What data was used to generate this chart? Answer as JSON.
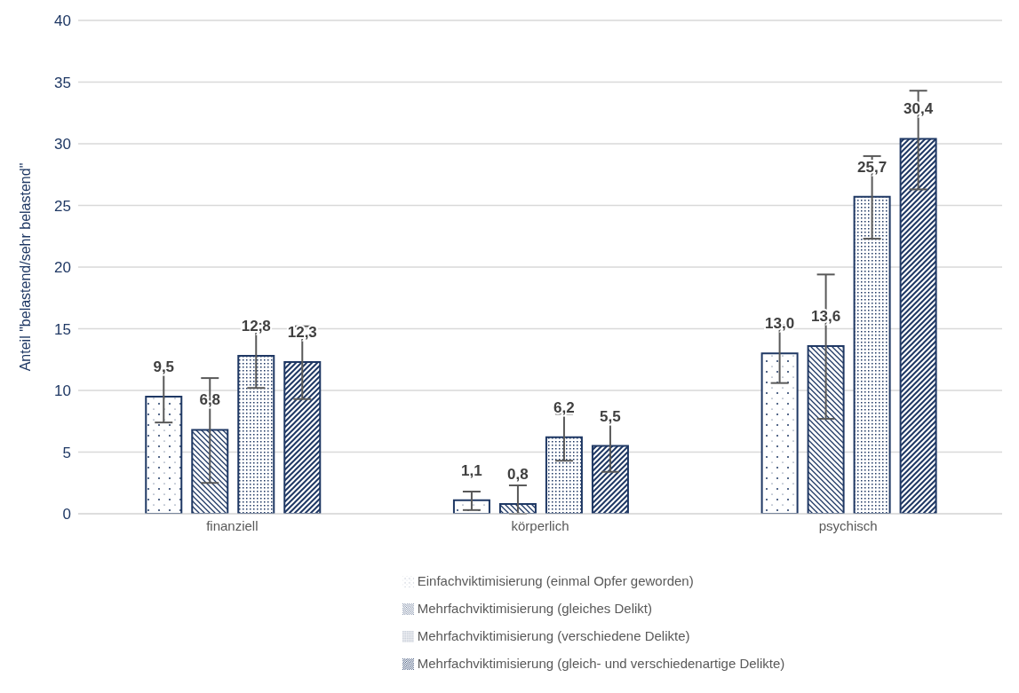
{
  "chart_data": {
    "type": "bar",
    "ylabel": "Anteil \"belastend/sehr belastend\"",
    "categories": [
      "finanziell",
      "körperlich",
      "psychisch"
    ],
    "series": [
      {
        "name": "Einfachviktimisierung (einmal Opfer geworden)",
        "color": "#1f3864",
        "values": [
          9.5,
          1.1,
          13.0
        ],
        "value_labels": [
          "9,5",
          "1,1",
          "13,0"
        ],
        "errors": [
          [
            7.4,
            11.6
          ],
          [
            0.3,
            1.8
          ],
          [
            10.6,
            15.3
          ]
        ]
      },
      {
        "name": "Mehrfachviktimisierung (gleiches Delikt)",
        "color": "#1f3864",
        "values": [
          6.8,
          0.8,
          13.6
        ],
        "value_labels": [
          "6,8",
          "0,8",
          "13,6"
        ],
        "errors": [
          [
            2.5,
            11.0
          ],
          [
            0,
            2.3
          ],
          [
            7.7,
            19.4
          ]
        ]
      },
      {
        "name": "Mehrfachviktimisierung (verschiedene Delikte)",
        "color": "#1f3864",
        "values": [
          12.8,
          6.2,
          25.7
        ],
        "value_labels": [
          "12,8",
          "6,2",
          "25,7"
        ],
        "errors": [
          [
            10.2,
            15.4
          ],
          [
            4.3,
            8.1
          ],
          [
            22.3,
            29.0
          ]
        ]
      },
      {
        "name": "Mehrfachviktimisierung (gleich- und verschiedenartige Delikte)",
        "color": "#1f3864",
        "values": [
          12.3,
          5.5,
          30.4
        ],
        "value_labels": [
          "12,3",
          "5,5",
          "30,4"
        ],
        "errors": [
          [
            9.3,
            15.2
          ],
          [
            3.4,
            7.6
          ],
          [
            26.3,
            34.3
          ]
        ]
      }
    ],
    "ylim": [
      0,
      40
    ],
    "yticks": [
      0,
      5,
      10,
      15,
      20,
      25,
      30,
      35,
      40
    ],
    "grid": "y",
    "legend": "bottom"
  }
}
